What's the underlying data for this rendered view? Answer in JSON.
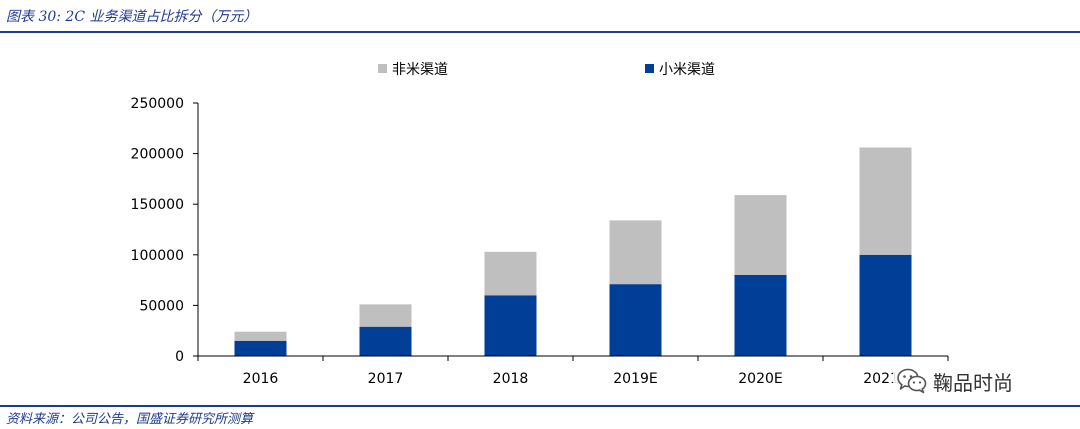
{
  "header": {
    "figure_title": "图表 30:  2C 业务渠道占比拆分（万元）"
  },
  "footer": {
    "source": "资料来源：公司公告，国盛证券研究所测算"
  },
  "watermark": {
    "text": "鞠品时尚",
    "icon": "wechat-icon"
  },
  "colors": {
    "xiaomi": "#003e97",
    "non_xiaomi": "#bfbfbf",
    "title_blue": "#1f3a93"
  },
  "chart_data": {
    "type": "bar",
    "stacked": true,
    "title": "",
    "xlabel": "",
    "ylabel": "",
    "categories": [
      "2016",
      "2017",
      "2018",
      "2019E",
      "2020E",
      "2021E"
    ],
    "series": [
      {
        "name": "小米渠道",
        "color": "#003e97",
        "values": [
          15000,
          29000,
          60000,
          71000,
          80000,
          100000
        ]
      },
      {
        "name": "非米渠道",
        "color": "#bfbfbf",
        "values": [
          9000,
          22000,
          43000,
          63000,
          79000,
          106000
        ]
      }
    ],
    "ylim": [
      0,
      250000
    ],
    "yticks": [
      0,
      50000,
      100000,
      150000,
      200000,
      250000
    ],
    "legend": [
      "非米渠道",
      "小米渠道"
    ],
    "legend_position": "top-center",
    "grid": false
  }
}
